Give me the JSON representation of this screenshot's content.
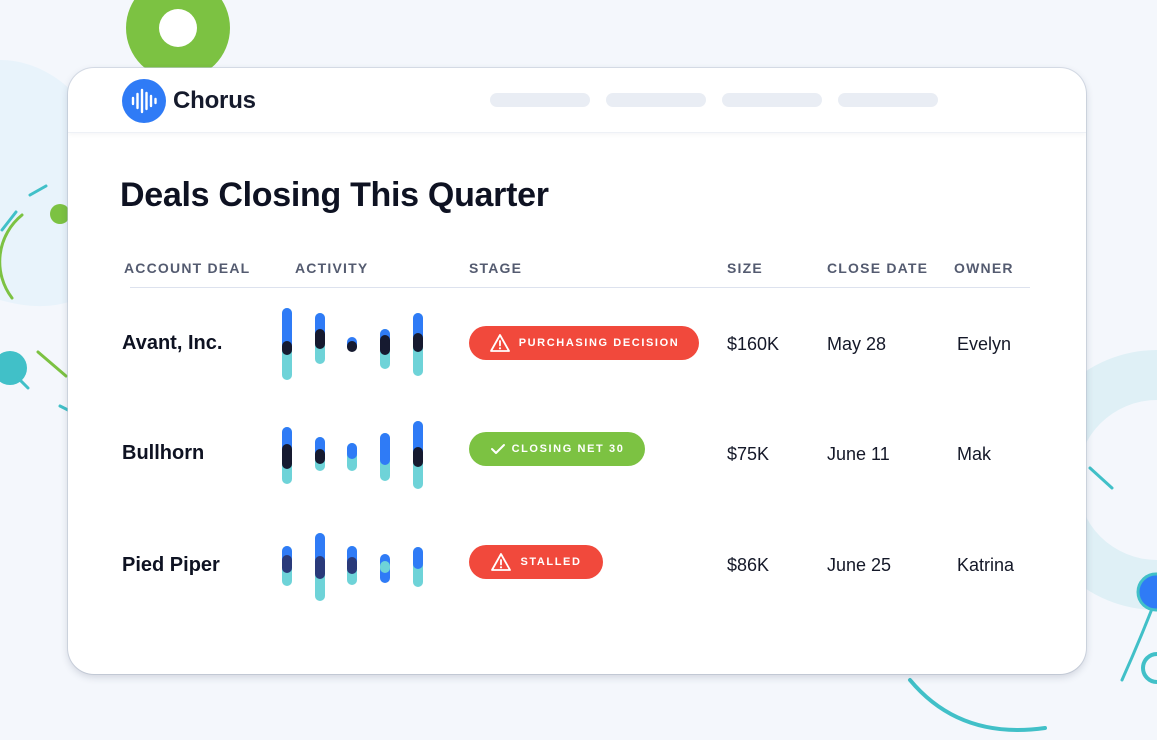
{
  "brand": {
    "name": "Chorus",
    "logo_icon": "waveform-icon",
    "colors": {
      "primary": "#2f7bf6",
      "dark": "#151a2c"
    }
  },
  "page": {
    "title": "Deals Closing This Quarter"
  },
  "table": {
    "columns": {
      "account": "ACCOUNT DEAL",
      "activity": "ACTIVITY",
      "stage": "STAGE",
      "size": "SIZE",
      "close_date": "CLOSE DATE",
      "owner": "OWNER"
    },
    "rows": [
      {
        "account": "Avant, Inc.",
        "stage": {
          "label": "PURCHASING DECISION",
          "status": "warning",
          "icon": "warning-triangle-icon",
          "color": "#f1493c"
        },
        "size": "$160K",
        "close_date": "May 28",
        "owner": "Evelyn"
      },
      {
        "account": "Bullhorn",
        "stage": {
          "label": "CLOSING NET 30",
          "status": "success",
          "icon": "checkmark-icon",
          "color": "#7cc242"
        },
        "size": "$75K",
        "close_date": "June 11",
        "owner": "Mak"
      },
      {
        "account": "Pied Piper",
        "stage": {
          "label": "STALLED",
          "status": "warning",
          "icon": "warning-triangle-icon",
          "color": "#f1493c"
        },
        "size": "$86K",
        "close_date": "June 25",
        "owner": "Katrina"
      }
    ]
  }
}
